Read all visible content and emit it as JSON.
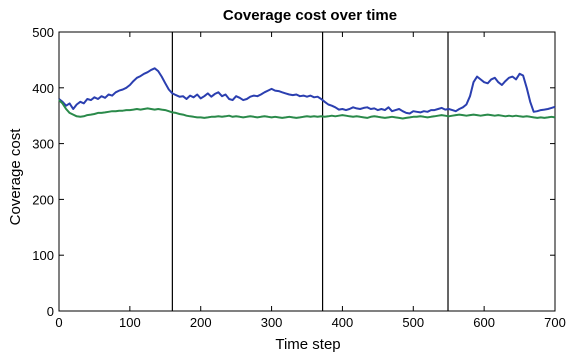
{
  "chart_data": {
    "type": "line",
    "title": "Coverage cost over time",
    "xlabel": "Time step",
    "ylabel": "Coverage cost",
    "xlim": [
      0,
      700
    ],
    "ylim": [
      0,
      500
    ],
    "xticks": [
      0,
      100,
      200,
      300,
      400,
      500,
      600,
      700
    ],
    "yticks": [
      0,
      100,
      200,
      300,
      400,
      500
    ],
    "grid": false,
    "legend": "none",
    "vertical_lines": [
      160,
      372,
      549
    ],
    "series": [
      {
        "color": "#2b3fb0",
        "x": [
          0,
          5,
          10,
          15,
          20,
          25,
          30,
          35,
          40,
          45,
          50,
          55,
          60,
          65,
          70,
          75,
          80,
          85,
          90,
          95,
          100,
          105,
          110,
          115,
          120,
          125,
          130,
          135,
          140,
          145,
          150,
          155,
          160,
          165,
          170,
          175,
          180,
          185,
          190,
          195,
          200,
          205,
          210,
          215,
          220,
          225,
          230,
          235,
          240,
          245,
          250,
          255,
          260,
          265,
          270,
          275,
          280,
          285,
          290,
          295,
          300,
          305,
          310,
          315,
          320,
          325,
          330,
          335,
          340,
          345,
          350,
          355,
          360,
          365,
          370,
          375,
          380,
          385,
          390,
          395,
          400,
          405,
          410,
          415,
          420,
          425,
          430,
          435,
          440,
          445,
          450,
          455,
          460,
          465,
          470,
          475,
          480,
          485,
          490,
          495,
          500,
          505,
          510,
          515,
          520,
          525,
          530,
          535,
          540,
          545,
          550,
          555,
          560,
          565,
          570,
          575,
          580,
          585,
          590,
          595,
          600,
          605,
          610,
          615,
          620,
          625,
          630,
          635,
          640,
          645,
          650,
          655,
          660,
          665,
          670,
          675,
          680,
          685,
          690,
          695,
          700
        ],
        "y": [
          380,
          375,
          368,
          372,
          362,
          370,
          375,
          372,
          380,
          378,
          383,
          380,
          385,
          382,
          388,
          386,
          392,
          395,
          397,
          400,
          405,
          412,
          418,
          421,
          425,
          428,
          432,
          435,
          430,
          420,
          408,
          397,
          390,
          387,
          384,
          385,
          380,
          386,
          383,
          388,
          381,
          385,
          390,
          384,
          389,
          392,
          385,
          388,
          380,
          378,
          385,
          382,
          378,
          380,
          384,
          386,
          385,
          388,
          392,
          395,
          398,
          395,
          394,
          392,
          390,
          388,
          387,
          388,
          385,
          386,
          384,
          386,
          383,
          384,
          380,
          375,
          370,
          368,
          365,
          361,
          362,
          360,
          362,
          365,
          363,
          362,
          364,
          365,
          362,
          363,
          360,
          362,
          360,
          365,
          358,
          360,
          362,
          358,
          355,
          354,
          358,
          357,
          356,
          358,
          357,
          360,
          360,
          362,
          364,
          361,
          362,
          360,
          358,
          362,
          365,
          370,
          385,
          410,
          420,
          415,
          410,
          408,
          415,
          418,
          410,
          405,
          412,
          418,
          420,
          415,
          425,
          422,
          400,
          375,
          357,
          358,
          360,
          361,
          362,
          364,
          366
        ]
      },
      {
        "color": "#2a8a4a",
        "x": [
          0,
          5,
          10,
          15,
          20,
          25,
          30,
          35,
          40,
          45,
          50,
          55,
          60,
          65,
          70,
          75,
          80,
          85,
          90,
          95,
          100,
          105,
          110,
          115,
          120,
          125,
          130,
          135,
          140,
          145,
          150,
          155,
          160,
          165,
          170,
          175,
          180,
          185,
          190,
          195,
          200,
          205,
          210,
          215,
          220,
          225,
          230,
          235,
          240,
          245,
          250,
          255,
          260,
          265,
          270,
          275,
          280,
          285,
          290,
          295,
          300,
          305,
          310,
          315,
          320,
          325,
          330,
          335,
          340,
          345,
          350,
          355,
          360,
          365,
          370,
          375,
          380,
          385,
          390,
          395,
          400,
          405,
          410,
          415,
          420,
          425,
          430,
          435,
          440,
          445,
          450,
          455,
          460,
          465,
          470,
          475,
          480,
          485,
          490,
          495,
          500,
          505,
          510,
          515,
          520,
          525,
          530,
          535,
          540,
          545,
          550,
          555,
          560,
          565,
          570,
          575,
          580,
          585,
          590,
          595,
          600,
          605,
          610,
          615,
          620,
          625,
          630,
          635,
          640,
          645,
          650,
          655,
          660,
          665,
          670,
          675,
          680,
          685,
          690,
          695,
          700
        ],
        "y": [
          378,
          372,
          362,
          355,
          352,
          349,
          348,
          349,
          351,
          352,
          353,
          355,
          355,
          356,
          357,
          358,
          358,
          359,
          359,
          360,
          360,
          361,
          362,
          361,
          362,
          363,
          362,
          361,
          362,
          361,
          360,
          358,
          356,
          355,
          353,
          352,
          350,
          349,
          348,
          347,
          347,
          346,
          347,
          348,
          348,
          349,
          348,
          349,
          350,
          348,
          349,
          348,
          347,
          348,
          349,
          348,
          347,
          348,
          349,
          348,
          347,
          348,
          347,
          346,
          347,
          348,
          347,
          346,
          347,
          348,
          349,
          348,
          349,
          348,
          349,
          348,
          349,
          350,
          349,
          350,
          351,
          350,
          349,
          348,
          349,
          348,
          347,
          346,
          348,
          349,
          348,
          347,
          346,
          347,
          348,
          347,
          346,
          345,
          346,
          347,
          348,
          348,
          349,
          348,
          347,
          348,
          349,
          350,
          351,
          350,
          349,
          350,
          351,
          352,
          351,
          350,
          351,
          352,
          351,
          350,
          351,
          352,
          351,
          350,
          351,
          350,
          349,
          350,
          349,
          350,
          349,
          348,
          349,
          348,
          347,
          346,
          347,
          346,
          347,
          348,
          347
        ]
      }
    ]
  }
}
